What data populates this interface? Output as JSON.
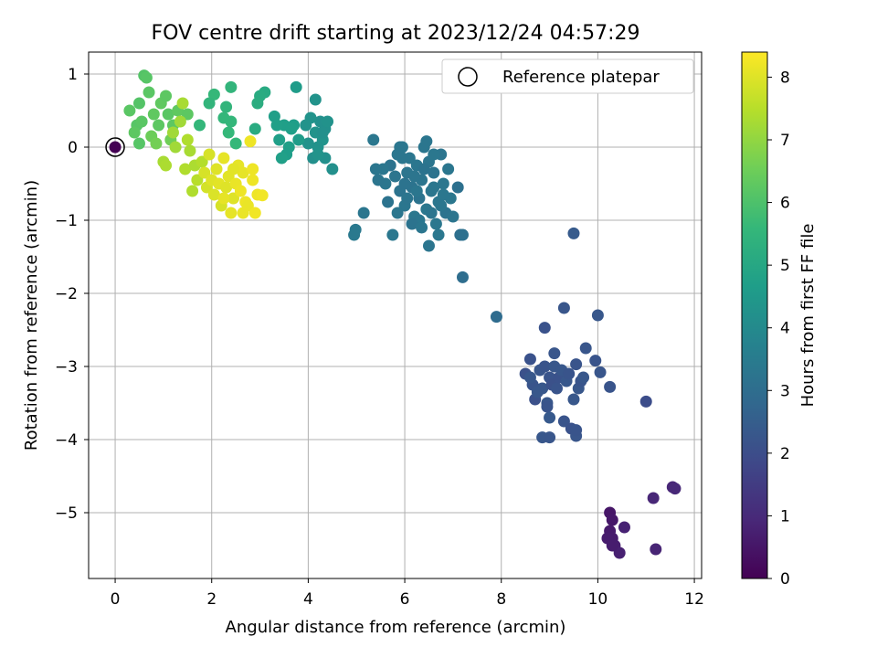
{
  "chart_data": {
    "type": "scatter",
    "title": "FOV centre drift starting at 2023/12/24 04:57:29",
    "xlabel": "Angular distance from reference (arcmin)",
    "ylabel": "Rotation from reference (arcmin)",
    "xlim": [
      -0.55,
      12.15
    ],
    "ylim": [
      -5.9,
      1.3
    ],
    "xticks": [
      0,
      2,
      4,
      6,
      8,
      10,
      12
    ],
    "yticks": [
      1,
      0,
      -1,
      -2,
      -3,
      -4,
      -5
    ],
    "grid": true,
    "legend": {
      "placement": "top-right",
      "entries": [
        "Reference platepar"
      ]
    },
    "reference_point": {
      "x": 0,
      "y": 0
    },
    "colorbar": {
      "label": "Hours from first FF file",
      "colormap": "viridis",
      "range": [
        0,
        8.4
      ],
      "ticks": [
        0,
        1,
        2,
        3,
        4,
        5,
        6,
        7,
        8
      ]
    },
    "colormap_stops": [
      "#440154",
      "#482878",
      "#3e4989",
      "#31688e",
      "#26828e",
      "#1f9e89",
      "#35b779",
      "#6ece58",
      "#b5de2b",
      "#fde725"
    ],
    "points": [
      [
        10.25,
        -5.0,
        0.5
      ],
      [
        10.3,
        -5.1,
        0.55
      ],
      [
        10.25,
        -5.25,
        0.6
      ],
      [
        10.3,
        -5.35,
        0.62
      ],
      [
        10.2,
        -5.35,
        0.65
      ],
      [
        10.35,
        -5.45,
        0.7
      ],
      [
        10.45,
        -5.55,
        0.75
      ],
      [
        10.55,
        -5.2,
        0.8
      ],
      [
        10.3,
        -5.45,
        0.68
      ],
      [
        11.2,
        -5.5,
        0.85
      ],
      [
        11.15,
        -4.8,
        0.9
      ],
      [
        11.55,
        -4.65,
        0.92
      ],
      [
        11.6,
        -4.67,
        0.95
      ],
      [
        11.0,
        -3.48,
        2.0
      ],
      [
        8.5,
        -3.1,
        2.1
      ],
      [
        8.6,
        -2.9,
        2.15
      ],
      [
        8.65,
        -3.25,
        2.2
      ],
      [
        8.7,
        -3.45,
        2.1
      ],
      [
        8.8,
        -3.05,
        2.25
      ],
      [
        8.85,
        -3.3,
        2.3
      ],
      [
        8.9,
        -3.0,
        2.2
      ],
      [
        8.9,
        -2.47,
        2.15
      ],
      [
        8.95,
        -3.5,
        2.3
      ],
      [
        9.0,
        -3.15,
        2.2
      ],
      [
        9.0,
        -3.7,
        2.35
      ],
      [
        9.05,
        -3.25,
        2.1
      ],
      [
        9.1,
        -2.82,
        2.25
      ],
      [
        9.1,
        -3.0,
        2.3
      ],
      [
        9.15,
        -3.3,
        2.2
      ],
      [
        9.2,
        -3.15,
        2.15
      ],
      [
        9.25,
        -3.05,
        2.3
      ],
      [
        9.3,
        -2.2,
        2.25
      ],
      [
        9.3,
        -3.75,
        2.2
      ],
      [
        9.35,
        -3.2,
        2.3
      ],
      [
        9.4,
        -3.1,
        2.2
      ],
      [
        9.45,
        -3.85,
        2.15
      ],
      [
        9.5,
        -3.45,
        2.3
      ],
      [
        9.5,
        -1.18,
        2.4
      ],
      [
        9.55,
        -3.95,
        2.25
      ],
      [
        9.55,
        -2.97,
        2.2
      ],
      [
        9.6,
        -3.3,
        2.3
      ],
      [
        9.65,
        -3.2,
        2.2
      ],
      [
        9.75,
        -2.75,
        2.25
      ],
      [
        9.7,
        -3.15,
        2.3
      ],
      [
        9.95,
        -2.92,
        2.2
      ],
      [
        10.05,
        -3.08,
        2.25
      ],
      [
        10.0,
        -2.3,
        2.3
      ],
      [
        10.25,
        -3.28,
        2.2
      ],
      [
        8.85,
        -3.97,
        2.3
      ],
      [
        8.95,
        -3.55,
        2.2
      ],
      [
        9.0,
        -3.97,
        2.25
      ],
      [
        9.55,
        -3.87,
        2.2
      ],
      [
        8.6,
        -3.15,
        2.3
      ],
      [
        8.75,
        -3.35,
        2.3
      ],
      [
        7.9,
        -2.32,
        2.95
      ],
      [
        7.2,
        -1.78,
        3.0
      ],
      [
        7.15,
        -1.2,
        3.05
      ],
      [
        7.2,
        -1.2,
        3.1
      ],
      [
        7.1,
        -0.55,
        3.1
      ],
      [
        5.7,
        -0.25,
        3.2
      ],
      [
        5.8,
        -0.4,
        3.25
      ],
      [
        5.85,
        -0.1,
        3.3
      ],
      [
        5.9,
        -0.6,
        3.2
      ],
      [
        5.95,
        0.0,
        3.35
      ],
      [
        6.0,
        -0.8,
        3.3
      ],
      [
        6.05,
        -0.35,
        3.25
      ],
      [
        6.1,
        -0.15,
        3.3
      ],
      [
        6.15,
        -0.55,
        3.2
      ],
      [
        6.2,
        -0.95,
        3.35
      ],
      [
        6.25,
        -0.25,
        3.3
      ],
      [
        6.3,
        -0.7,
        3.2
      ],
      [
        6.35,
        -0.45,
        3.25
      ],
      [
        6.4,
        0.0,
        3.3
      ],
      [
        6.45,
        -0.85,
        3.35
      ],
      [
        6.5,
        -0.2,
        3.25
      ],
      [
        6.55,
        -0.6,
        3.3
      ],
      [
        6.6,
        -0.35,
        3.2
      ],
      [
        6.65,
        -1.05,
        3.35
      ],
      [
        6.7,
        -0.75,
        3.3
      ],
      [
        6.75,
        -0.1,
        3.25
      ],
      [
        6.8,
        -0.5,
        3.3
      ],
      [
        6.85,
        -0.9,
        3.2
      ],
      [
        6.9,
        -0.3,
        3.3
      ],
      [
        6.95,
        -0.7,
        3.35
      ],
      [
        7.0,
        -0.95,
        3.25
      ],
      [
        5.6,
        -0.5,
        3.3
      ],
      [
        5.65,
        -0.75,
        3.2
      ],
      [
        5.75,
        -1.2,
        3.35
      ],
      [
        5.55,
        -0.3,
        3.3
      ],
      [
        5.45,
        -0.45,
        3.25
      ],
      [
        5.4,
        -0.3,
        3.3
      ],
      [
        5.35,
        0.1,
        3.35
      ],
      [
        5.15,
        -0.9,
        3.3
      ],
      [
        4.95,
        -1.2,
        3.4
      ],
      [
        4.98,
        -1.13,
        3.4
      ],
      [
        6.3,
        -1.0,
        3.3
      ],
      [
        6.5,
        -1.35,
        3.25
      ],
      [
        6.45,
        0.08,
        3.3
      ],
      [
        6.6,
        -0.1,
        3.35
      ],
      [
        6.15,
        -1.05,
        3.2
      ],
      [
        5.95,
        -0.15,
        3.3
      ],
      [
        6.05,
        -0.7,
        3.25
      ],
      [
        6.25,
        -0.6,
        3.3
      ],
      [
        6.7,
        -1.2,
        3.35
      ],
      [
        6.4,
        -0.3,
        3.2
      ],
      [
        5.85,
        -0.9,
        3.3
      ],
      [
        6.55,
        -0.9,
        3.25
      ],
      [
        6.35,
        -1.1,
        3.3
      ],
      [
        6.8,
        -0.65,
        3.35
      ],
      [
        6.0,
        -0.5,
        3.2
      ],
      [
        6.2,
        -0.4,
        3.25
      ],
      [
        6.6,
        -0.55,
        3.3
      ],
      [
        5.9,
        0.0,
        3.3
      ],
      [
        6.75,
        -0.8,
        3.3
      ],
      [
        4.5,
        -0.3,
        4.2
      ],
      [
        4.35,
        -0.15,
        4.2
      ],
      [
        4.3,
        0.1,
        4.3
      ],
      [
        4.25,
        0.35,
        4.2
      ],
      [
        4.2,
        0.0,
        4.25
      ],
      [
        4.15,
        0.2,
        4.3
      ],
      [
        4.1,
        -0.15,
        4.2
      ],
      [
        4.05,
        0.4,
        4.3
      ],
      [
        4.0,
        0.05,
        4.25
      ],
      [
        4.35,
        0.25,
        4.2
      ],
      [
        4.15,
        0.65,
        4.3
      ],
      [
        4.4,
        0.35,
        4.25
      ],
      [
        3.95,
        0.3,
        4.3
      ],
      [
        4.3,
        0.2,
        4.2
      ],
      [
        4.2,
        -0.1,
        4.3
      ],
      [
        3.75,
        0.82,
        4.6
      ],
      [
        3.8,
        0.1,
        4.6
      ],
      [
        3.6,
        0.0,
        4.7
      ],
      [
        3.55,
        -0.1,
        4.65
      ],
      [
        3.5,
        0.3,
        4.7
      ],
      [
        3.45,
        -0.15,
        4.75
      ],
      [
        3.4,
        0.1,
        4.7
      ],
      [
        3.3,
        0.42,
        4.7
      ],
      [
        3.35,
        0.3,
        4.75
      ],
      [
        3.7,
        0.3,
        4.65
      ],
      [
        3.65,
        0.25,
        4.7
      ],
      [
        3.1,
        0.75,
        5.1
      ],
      [
        3.0,
        0.7,
        5.15
      ],
      [
        2.95,
        0.6,
        5.2
      ],
      [
        2.9,
        0.25,
        5.15
      ],
      [
        2.4,
        0.82,
        5.5
      ],
      [
        2.5,
        0.05,
        5.6
      ],
      [
        2.4,
        0.35,
        5.55
      ],
      [
        2.3,
        0.55,
        5.5
      ],
      [
        2.35,
        0.2,
        5.6
      ],
      [
        2.25,
        0.4,
        5.55
      ],
      [
        2.05,
        0.72,
        5.6
      ],
      [
        1.95,
        0.6,
        5.5
      ],
      [
        1.75,
        0.3,
        5.55
      ],
      [
        0.6,
        0.98,
        6.1
      ],
      [
        0.65,
        0.95,
        6.15
      ],
      [
        0.7,
        0.75,
        6.2
      ],
      [
        0.5,
        0.6,
        6.1
      ],
      [
        0.3,
        0.5,
        6.2
      ],
      [
        0.45,
        0.3,
        6.15
      ],
      [
        0.55,
        0.35,
        6.2
      ],
      [
        0.4,
        0.2,
        6.25
      ],
      [
        0.5,
        0.05,
        6.15
      ],
      [
        0.8,
        0.45,
        6.3
      ],
      [
        0.9,
        0.3,
        6.25
      ],
      [
        0.95,
        0.6,
        6.3
      ],
      [
        1.05,
        0.7,
        6.25
      ],
      [
        1.1,
        0.45,
        6.2
      ],
      [
        1.2,
        0.3,
        6.25
      ],
      [
        1.3,
        0.5,
        6.3
      ],
      [
        1.5,
        0.45,
        6.25
      ],
      [
        0.75,
        0.15,
        6.5
      ],
      [
        0.85,
        0.05,
        6.6
      ],
      [
        1.15,
        0.1,
        6.55
      ],
      [
        1.4,
        0.6,
        7.3
      ],
      [
        1.35,
        0.35,
        7.2
      ],
      [
        1.5,
        0.1,
        7.4
      ],
      [
        1.0,
        -0.2,
        7.3
      ],
      [
        1.05,
        -0.25,
        7.35
      ],
      [
        1.25,
        0.0,
        7.2
      ],
      [
        1.45,
        -0.3,
        7.4
      ],
      [
        1.55,
        -0.05,
        7.3
      ],
      [
        1.6,
        -0.6,
        7.4
      ],
      [
        1.65,
        -0.25,
        7.35
      ],
      [
        1.7,
        -0.45,
        7.5
      ],
      [
        1.8,
        -0.2,
        7.45
      ],
      [
        1.2,
        0.2,
        7.2
      ],
      [
        1.85,
        -0.35,
        7.9
      ],
      [
        1.9,
        -0.55,
        7.85
      ],
      [
        1.95,
        -0.1,
        7.9
      ],
      [
        2.0,
        -0.45,
        8.0
      ],
      [
        2.05,
        -0.65,
        7.95
      ],
      [
        2.1,
        -0.3,
        8.0
      ],
      [
        2.15,
        -0.5,
        8.05
      ],
      [
        2.2,
        -0.8,
        7.9
      ],
      [
        2.25,
        -0.15,
        8.1
      ],
      [
        2.3,
        -0.55,
        8.0
      ],
      [
        2.35,
        -0.4,
        8.05
      ],
      [
        2.4,
        -0.9,
        8.1
      ],
      [
        2.45,
        -0.7,
        8.0
      ],
      [
        2.5,
        -0.5,
        8.15
      ],
      [
        2.55,
        -0.25,
        8.1
      ],
      [
        2.6,
        -0.6,
        8.2
      ],
      [
        2.65,
        -0.35,
        8.1
      ],
      [
        2.7,
        -0.75,
        8.2
      ],
      [
        2.75,
        -0.8,
        8.15
      ],
      [
        2.8,
        0.08,
        8.2
      ],
      [
        2.85,
        -0.45,
        8.2
      ],
      [
        2.9,
        -0.9,
        8.25
      ],
      [
        2.95,
        -0.65,
        8.2
      ],
      [
        3.05,
        -0.66,
        8.25
      ],
      [
        2.25,
        -0.7,
        8.1
      ],
      [
        2.45,
        -0.3,
        8.05
      ],
      [
        2.65,
        -0.9,
        8.15
      ],
      [
        2.85,
        -0.3,
        8.2
      ]
    ]
  }
}
